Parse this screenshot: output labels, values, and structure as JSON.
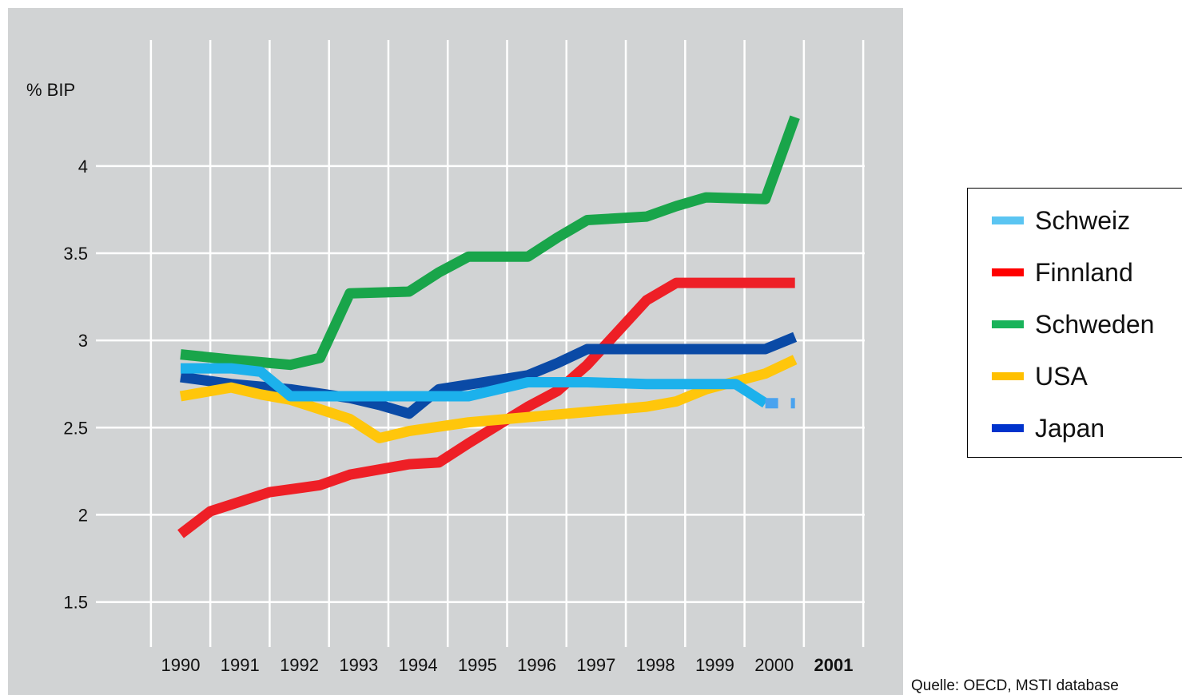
{
  "chart_data": {
    "type": "line",
    "ylabel": "% BIP",
    "ylim": [
      1.15,
      4.7
    ],
    "yticks": [
      1.5,
      2,
      2.5,
      3,
      3.5,
      4
    ],
    "ytick_labels": [
      "1.5",
      "2",
      "2.5",
      "3",
      "3.5",
      "4"
    ],
    "categories": [
      "1990",
      "1991",
      "1992",
      "1993",
      "1994",
      "1995",
      "1996",
      "1997",
      "1998",
      "1999",
      "2000",
      "2001"
    ],
    "bold_category": "2001",
    "grid": true,
    "series": [
      {
        "name": "Schweden",
        "color": "#19a54a",
        "x": [
          1990,
          1990.85,
          1991.85,
          1992.35,
          1992.85,
          1993.85,
          1994.35,
          1994.85,
          1995.85,
          1996.35,
          1996.85,
          1997.85,
          1998.35,
          1998.85,
          1999.85,
          2000.35
        ],
        "values": [
          2.92,
          2.89,
          2.86,
          2.9,
          3.27,
          3.28,
          3.39,
          3.48,
          3.48,
          3.59,
          3.69,
          3.71,
          3.77,
          3.82,
          3.81,
          4.28
        ]
      },
      {
        "name": "Finnland",
        "color": "#ee1f26",
        "x": [
          1990,
          1990.5,
          1991.5,
          1992.35,
          1992.85,
          1993.85,
          1994.35,
          1994.85,
          1995.85,
          1996.35,
          1996.85,
          1997.85,
          1998.35,
          1998.85,
          2000.35
        ],
        "values": [
          1.89,
          2.02,
          2.13,
          2.17,
          2.23,
          2.29,
          2.3,
          2.41,
          2.62,
          2.71,
          2.86,
          3.23,
          3.33,
          3.33,
          3.33
        ]
      },
      {
        "name": "Japan",
        "color": "#0a4aa6",
        "x": [
          1990,
          1990.85,
          1991.85,
          1992.85,
          1993.35,
          1993.85,
          1994.35,
          1995.85,
          1996.35,
          1996.85,
          1997.85,
          1998.85,
          1999.85,
          2000.35
        ],
        "values": [
          2.79,
          2.75,
          2.72,
          2.67,
          2.63,
          2.58,
          2.72,
          2.8,
          2.87,
          2.95,
          2.95,
          2.95,
          2.95,
          3.02
        ]
      },
      {
        "name": "USA",
        "color": "#ffc60b",
        "x": [
          1990,
          1990.85,
          1991.35,
          1991.85,
          1992.85,
          1993.35,
          1993.85,
          1994.85,
          1995.85,
          1996.85,
          1997.85,
          1998.35,
          1998.85,
          1999.85,
          2000.35
        ],
        "values": [
          2.68,
          2.73,
          2.69,
          2.66,
          2.55,
          2.44,
          2.48,
          2.53,
          2.56,
          2.59,
          2.62,
          2.65,
          2.72,
          2.81,
          2.89
        ]
      },
      {
        "name": "Schweiz",
        "color": "#1cb1ec",
        "x": [
          1990,
          1990.85,
          1991.35,
          1991.85,
          1992.85,
          1993.85,
          1994.85,
          1995.35,
          1995.85,
          1996.85,
          1997.85,
          1998.85,
          1999.35,
          1999.85
        ],
        "values": [
          2.84,
          2.84,
          2.82,
          2.68,
          2.68,
          2.68,
          2.68,
          2.72,
          2.76,
          2.76,
          2.75,
          2.75,
          2.75,
          2.64
        ],
        "projection": {
          "x": [
            1999.85,
            2000.35
          ],
          "values": [
            2.64,
            2.64
          ]
        }
      }
    ]
  },
  "legend": [
    {
      "label": "Schweiz",
      "color": "#5bc5f2"
    },
    {
      "label": "Finnland",
      "color": "#ff0000"
    },
    {
      "label": "Schweden",
      "color": "#19b35a"
    },
    {
      "label": "USA",
      "color": "#ffc000"
    },
    {
      "label": "Japan",
      "color": "#0033cc"
    }
  ],
  "source": "Quelle: OECD, MSTI database"
}
